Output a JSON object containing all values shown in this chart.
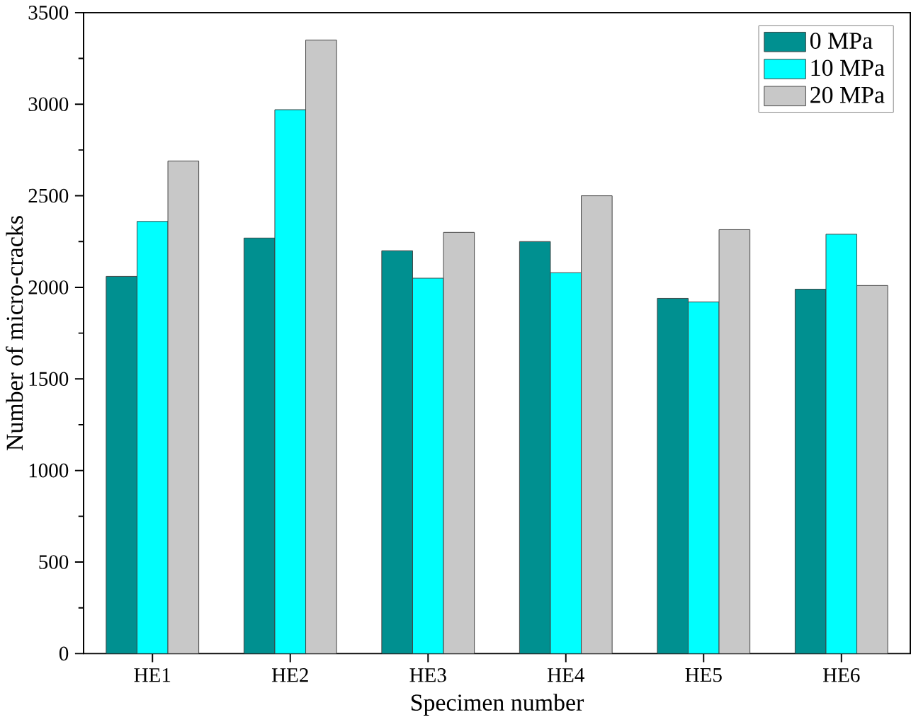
{
  "chart_data": {
    "type": "bar",
    "xlabel": "Specimen number",
    "ylabel": "Number of micro-cracks",
    "categories": [
      "HE1",
      "HE2",
      "HE3",
      "HE4",
      "HE5",
      "HE6"
    ],
    "series": [
      {
        "name": "0 MPa",
        "color": "#009090",
        "values": [
          2060,
          2270,
          2200,
          2250,
          1940,
          1990
        ]
      },
      {
        "name": "10 MPa",
        "color": "#00ffff",
        "values": [
          2360,
          2970,
          2050,
          2080,
          1920,
          2290
        ]
      },
      {
        "name": "20 MPa",
        "color": "#c8c8c8",
        "values": [
          2690,
          3350,
          2300,
          2500,
          2315,
          2010
        ]
      }
    ],
    "ylim": [
      0,
      3500
    ],
    "yticks": [
      0,
      500,
      1000,
      1500,
      2000,
      2500,
      3000,
      3500
    ],
    "grid": false,
    "legend": "top right"
  }
}
